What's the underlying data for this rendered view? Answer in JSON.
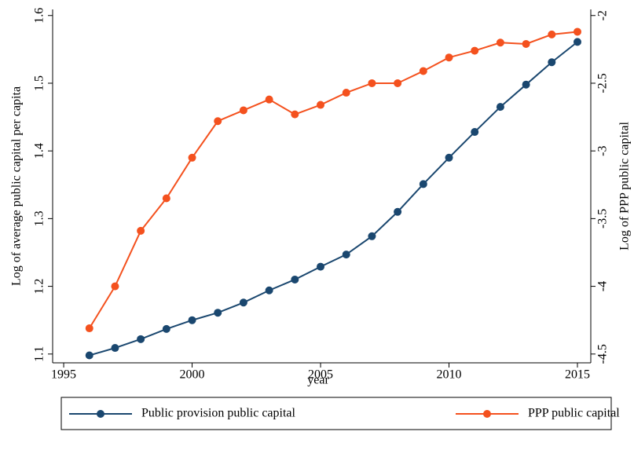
{
  "chart_data": {
    "type": "line",
    "x": [
      1996,
      1997,
      1998,
      1999,
      2000,
      2001,
      2002,
      2003,
      2004,
      2005,
      2006,
      2007,
      2008,
      2009,
      2010,
      2011,
      2012,
      2013,
      2014,
      2015
    ],
    "series": [
      {
        "name": "Public provision public capital",
        "color": "#1a476f",
        "axis": "y",
        "values": [
          1.098,
          1.109,
          1.122,
          1.137,
          1.15,
          1.161,
          1.176,
          1.194,
          1.21,
          1.229,
          1.247,
          1.274,
          1.31,
          1.351,
          1.39,
          1.428,
          1.465,
          1.498,
          1.531,
          1.561
        ]
      },
      {
        "name": "PPP public capital",
        "color": "#f4511e",
        "axis": "y2",
        "values": [
          -4.31,
          -4.0,
          -3.59,
          -3.35,
          -3.05,
          -2.78,
          -2.7,
          -2.62,
          -2.73,
          -2.66,
          -2.57,
          -2.5,
          -2.5,
          -2.41,
          -2.31,
          -2.26,
          -2.2,
          -2.21,
          -2.14,
          -2.12
        ]
      }
    ],
    "xlabel": "year",
    "ylabel": "Log of average public capital per capita",
    "y2label": "Log of PPP public capital",
    "xlim": [
      1994.57,
      2015.52
    ],
    "xticks": [
      1995,
      2000,
      2005,
      2010,
      2015
    ],
    "ylim": [
      1.087,
      1.609
    ],
    "yticks": [
      1.1,
      1.2,
      1.3,
      1.4,
      1.5,
      1.6
    ],
    "y2lim": [
      -4.565,
      -1.955
    ],
    "y2ticks": [
      -4.5,
      -4,
      -3.5,
      -3,
      -2.5,
      -2
    ],
    "grid": false,
    "legend": "bottom"
  }
}
